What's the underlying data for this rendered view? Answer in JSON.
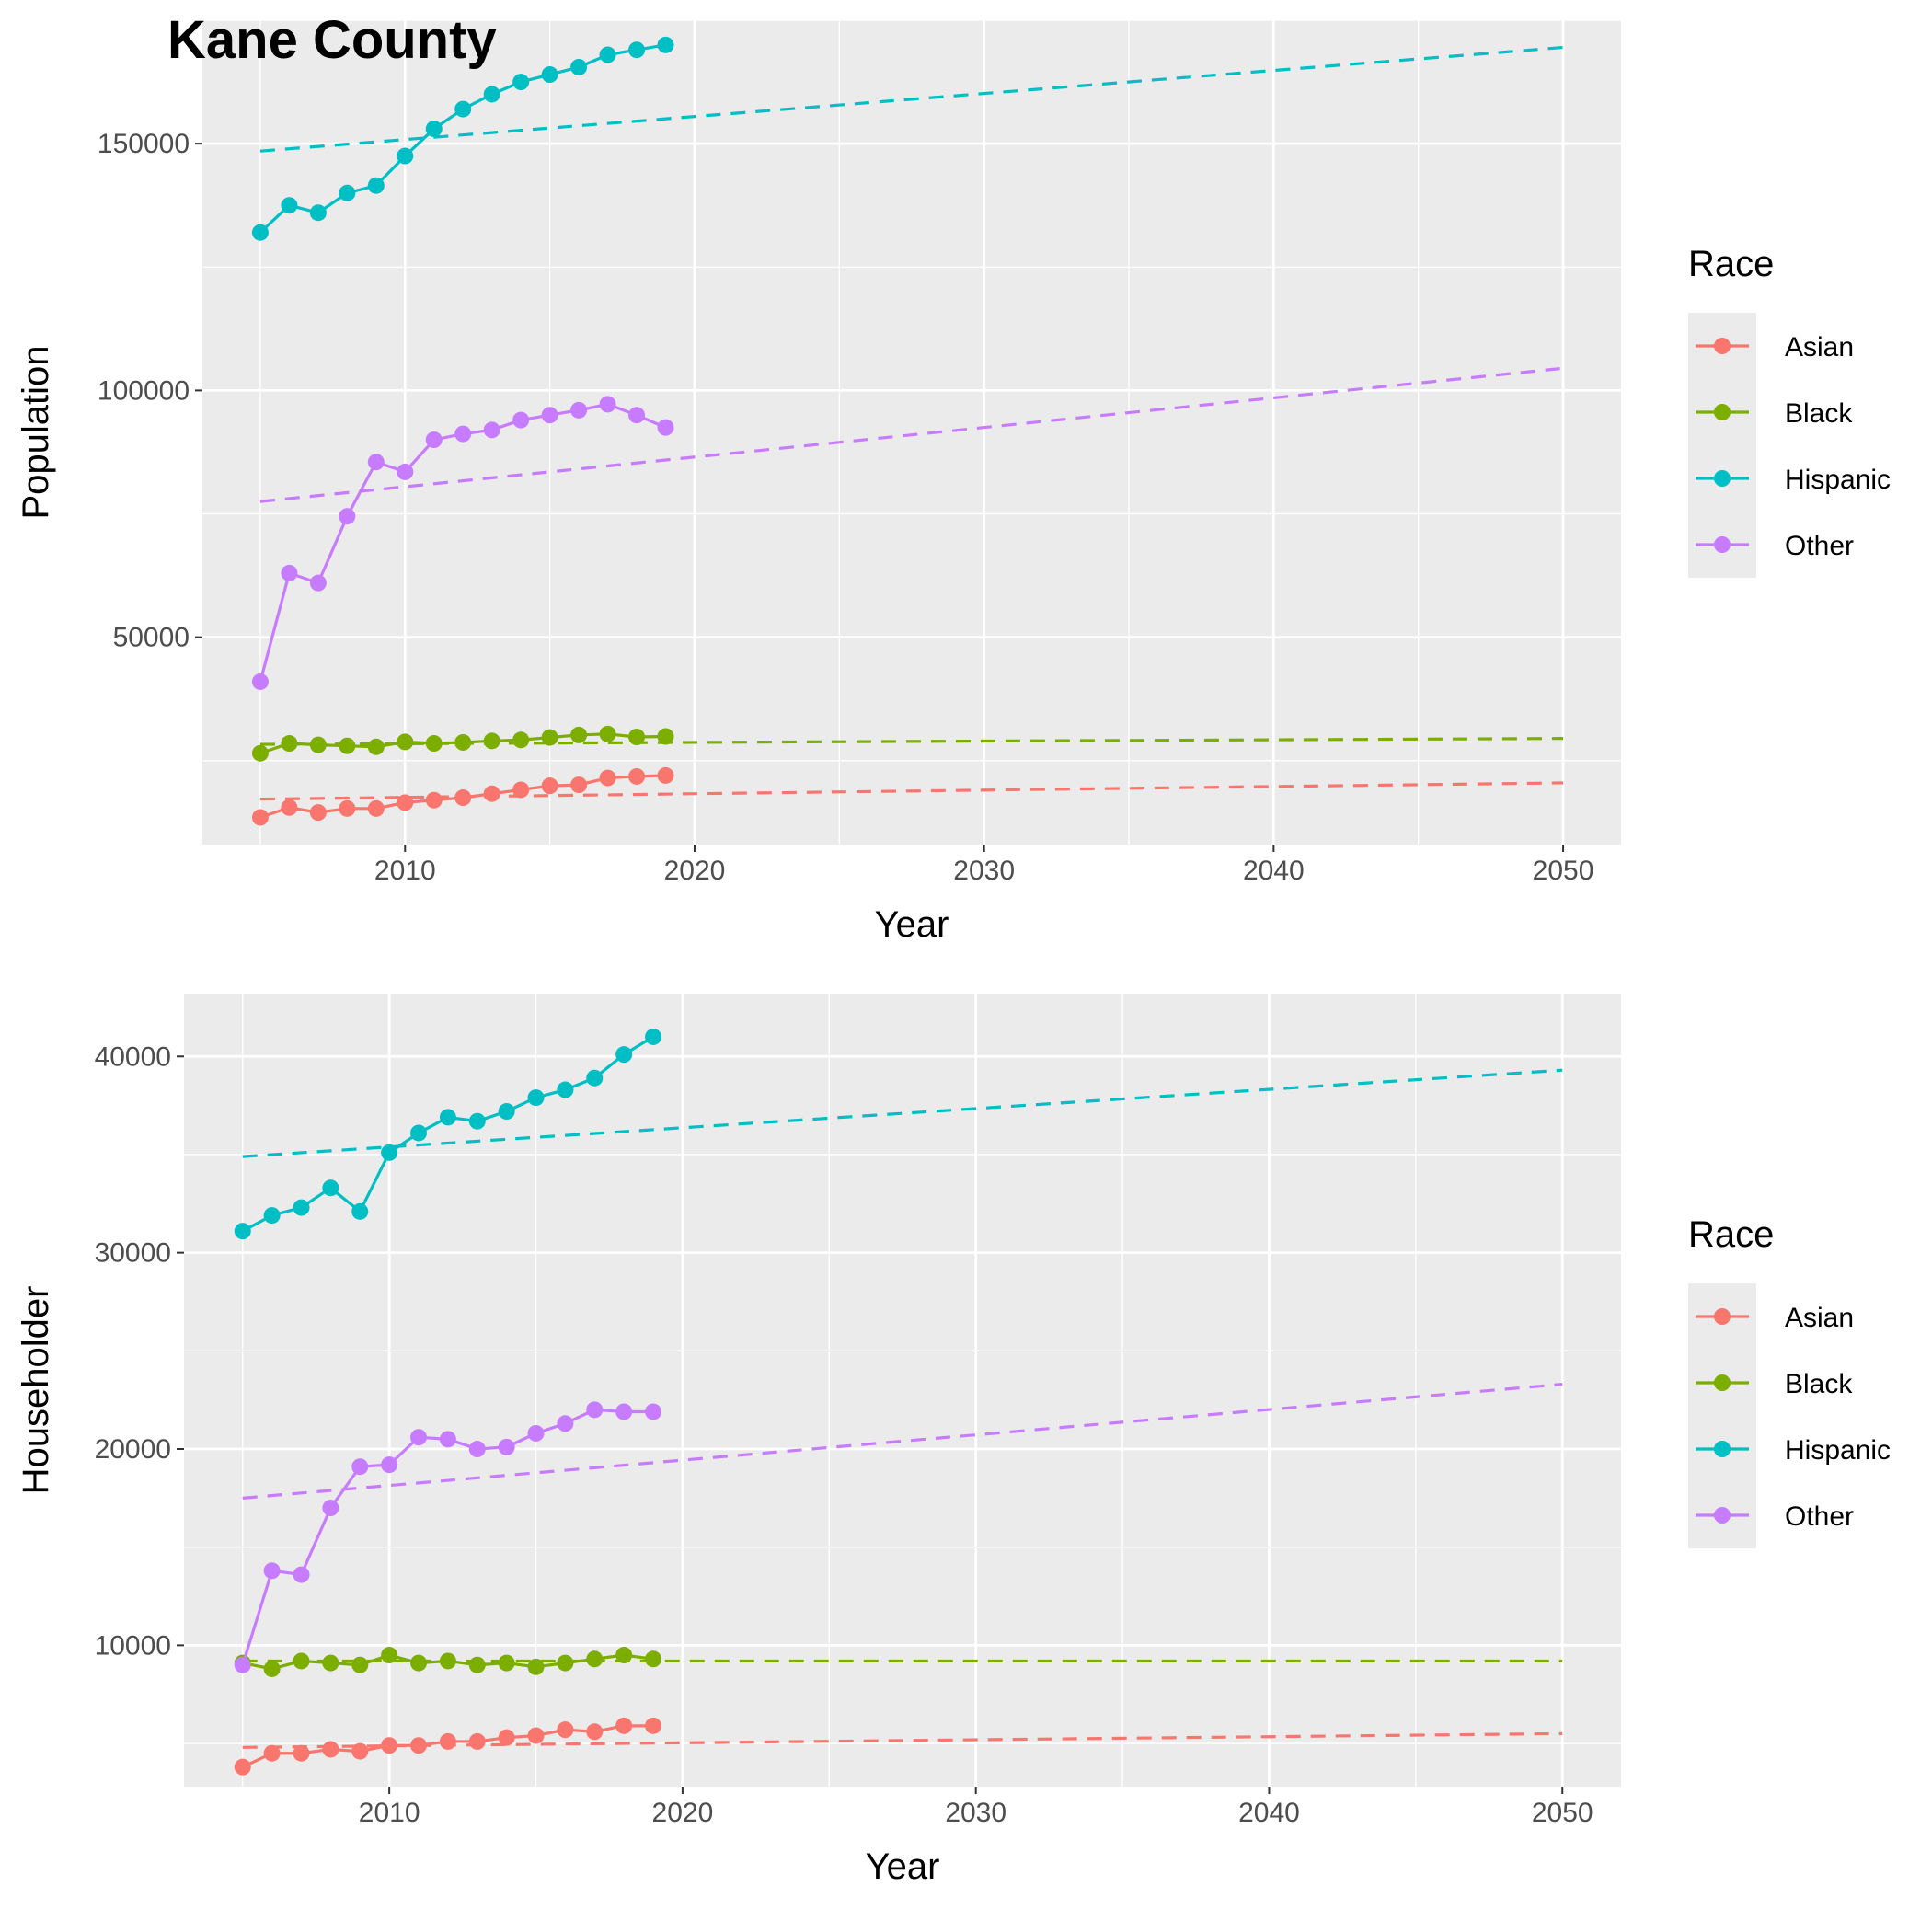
{
  "title": "Kane County",
  "colors": {
    "Asian": "#F8766D",
    "Black": "#7CAE00",
    "Hispanic": "#00BFC4",
    "Other": "#C77CFF",
    "panel_background": "#EBEBEB",
    "grid": "#FFFFFF"
  },
  "chart_data": [
    {
      "type": "line",
      "xlabel": "Year",
      "ylabel": "Population",
      "xlim": [
        2003,
        2052
      ],
      "ylim": [
        8000,
        175000
      ],
      "x_ticks": [
        2010,
        2020,
        2030,
        2040,
        2050
      ],
      "y_ticks": [
        50000,
        100000,
        150000
      ],
      "grid": true,
      "legend": {
        "title": "Race",
        "position": "right",
        "entries": [
          "Asian",
          "Black",
          "Hispanic",
          "Other"
        ]
      },
      "x": [
        2005,
        2006,
        2007,
        2008,
        2009,
        2010,
        2011,
        2012,
        2013,
        2014,
        2015,
        2016,
        2017,
        2018,
        2019
      ],
      "series": [
        {
          "name": "Asian",
          "values": [
            13500,
            15500,
            14500,
            15300,
            15300,
            16500,
            17000,
            17500,
            18300,
            19100,
            19900,
            20100,
            21500,
            21800,
            22000
          ]
        },
        {
          "name": "Black",
          "values": [
            26500,
            28500,
            28200,
            28000,
            27800,
            28800,
            28500,
            28700,
            29000,
            29200,
            29700,
            30200,
            30400,
            29800,
            29900
          ]
        },
        {
          "name": "Hispanic",
          "values": [
            132000,
            137500,
            136000,
            140000,
            141500,
            147500,
            153000,
            157000,
            160000,
            162500,
            164000,
            165500,
            168000,
            169000,
            170000
          ]
        },
        {
          "name": "Other",
          "values": [
            41000,
            63000,
            61000,
            74500,
            85500,
            83500,
            90000,
            91200,
            92000,
            94000,
            95000,
            96000,
            97200,
            95000,
            92500
          ]
        }
      ],
      "trends": [
        {
          "name": "Asian",
          "x": [
            2005,
            2050
          ],
          "values": [
            17200,
            20500
          ]
        },
        {
          "name": "Black",
          "x": [
            2005,
            2050
          ],
          "values": [
            28300,
            29500
          ]
        },
        {
          "name": "Hispanic",
          "x": [
            2005,
            2050
          ],
          "values": [
            148500,
            169500
          ]
        },
        {
          "name": "Other",
          "x": [
            2005,
            2050
          ],
          "values": [
            77500,
            104500
          ]
        }
      ]
    },
    {
      "type": "line",
      "xlabel": "Year",
      "ylabel": "Householder",
      "xlim": [
        2003,
        2052
      ],
      "ylim": [
        2800,
        43200
      ],
      "x_ticks": [
        2010,
        2020,
        2030,
        2040,
        2050
      ],
      "y_ticks": [
        10000,
        20000,
        30000,
        40000
      ],
      "grid": true,
      "legend": {
        "title": "Race",
        "position": "right",
        "entries": [
          "Asian",
          "Black",
          "Hispanic",
          "Other"
        ]
      },
      "x": [
        2005,
        2006,
        2007,
        2008,
        2009,
        2010,
        2011,
        2012,
        2013,
        2014,
        2015,
        2016,
        2017,
        2018,
        2019
      ],
      "series": [
        {
          "name": "Asian",
          "values": [
            3800,
            4500,
            4500,
            4700,
            4600,
            4900,
            4900,
            5100,
            5100,
            5300,
            5400,
            5700,
            5600,
            5900,
            5900
          ]
        },
        {
          "name": "Black",
          "values": [
            9100,
            8800,
            9200,
            9100,
            9000,
            9500,
            9100,
            9200,
            9000,
            9100,
            8900,
            9100,
            9300,
            9500,
            9300
          ]
        },
        {
          "name": "Hispanic",
          "values": [
            31100,
            31900,
            32300,
            33300,
            32100,
            35100,
            36100,
            36900,
            36700,
            37200,
            37900,
            38300,
            38900,
            40100,
            41000
          ]
        },
        {
          "name": "Other",
          "values": [
            9000,
            13800,
            13600,
            17000,
            19100,
            19200,
            20600,
            20500,
            20000,
            20100,
            20800,
            21300,
            22000,
            21900,
            21900
          ]
        }
      ],
      "trends": [
        {
          "name": "Asian",
          "x": [
            2005,
            2050
          ],
          "values": [
            4800,
            5500
          ]
        },
        {
          "name": "Black",
          "x": [
            2005,
            2050
          ],
          "values": [
            9200,
            9200
          ]
        },
        {
          "name": "Hispanic",
          "x": [
            2005,
            2050
          ],
          "values": [
            34900,
            39300
          ]
        },
        {
          "name": "Other",
          "x": [
            2005,
            2050
          ],
          "values": [
            17500,
            23300
          ]
        }
      ]
    }
  ]
}
